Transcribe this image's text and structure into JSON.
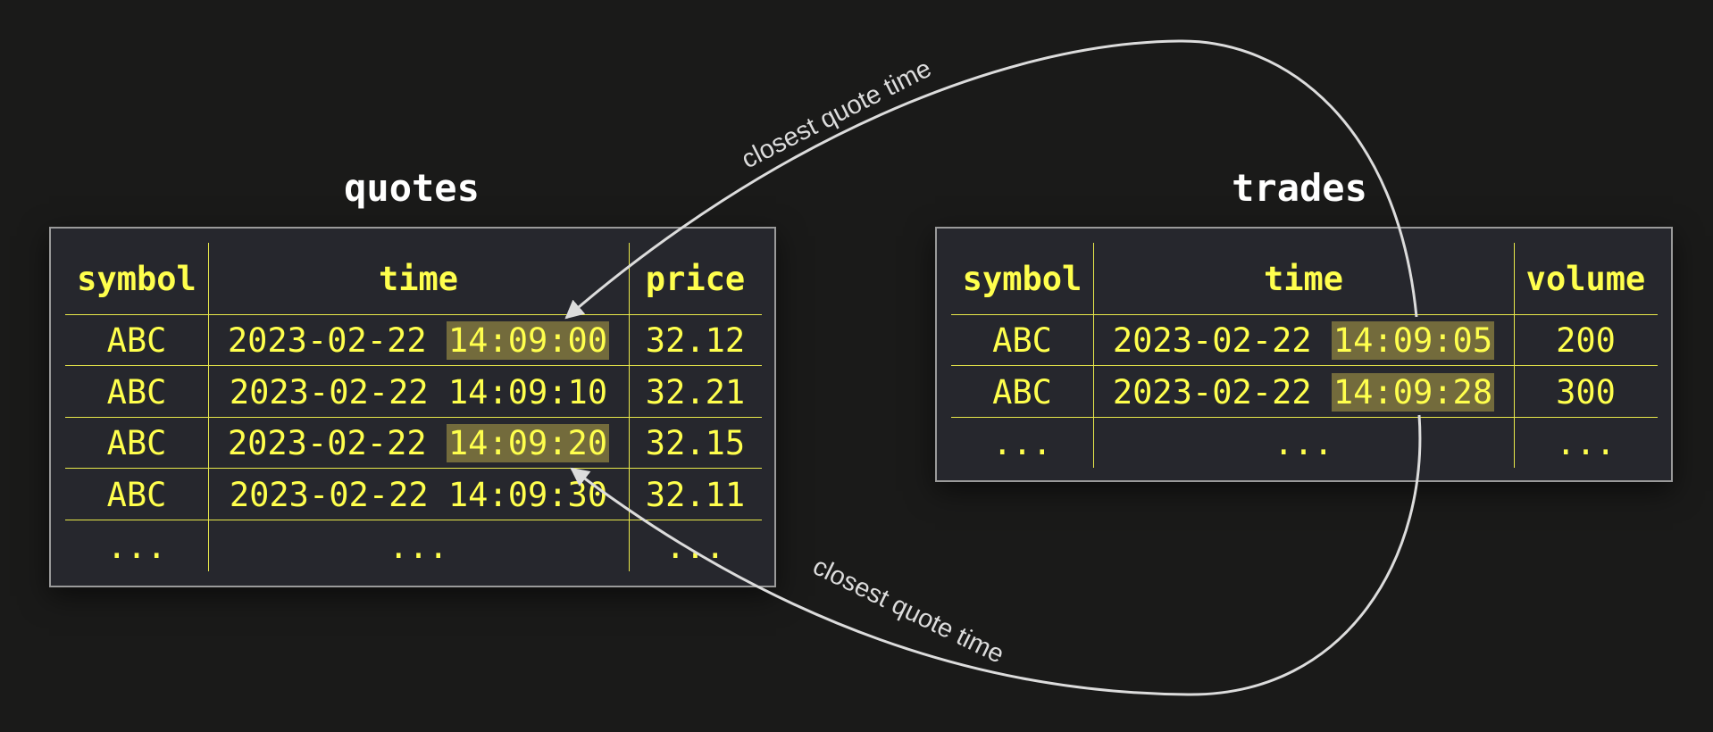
{
  "colors": {
    "background": "#1a1a19",
    "table_bg": "#26272d",
    "text": "#ffff4d",
    "highlight": "#736b3c",
    "arrow": "#dcdcdc"
  },
  "quotes": {
    "title": "quotes",
    "headers": [
      "symbol",
      "time",
      "price"
    ],
    "rows": [
      {
        "symbol": "ABC",
        "date": "2023-02-22",
        "time": "14:09:00",
        "price": "32.12",
        "highlight": true
      },
      {
        "symbol": "ABC",
        "date": "2023-02-22",
        "time": "14:09:10",
        "price": "32.21",
        "highlight": false
      },
      {
        "symbol": "ABC",
        "date": "2023-02-22",
        "time": "14:09:20",
        "price": "32.15",
        "highlight": true
      },
      {
        "symbol": "ABC",
        "date": "2023-02-22",
        "time": "14:09:30",
        "price": "32.11",
        "highlight": false
      }
    ],
    "ellipsis": [
      "...",
      "...",
      "..."
    ]
  },
  "trades": {
    "title": "trades",
    "headers": [
      "symbol",
      "time",
      "volume"
    ],
    "rows": [
      {
        "symbol": "ABC",
        "date": "2023-02-22",
        "time": "14:09:05",
        "volume": "200",
        "highlight": true
      },
      {
        "symbol": "ABC",
        "date": "2023-02-22",
        "time": "14:09:28",
        "volume": "300",
        "highlight": true
      }
    ],
    "ellipsis": [
      "...",
      "...",
      "..."
    ]
  },
  "arrows": [
    {
      "label": "closest quote time",
      "from": "trades.rows.0.time",
      "to": "quotes.rows.0.time"
    },
    {
      "label": "closest quote time",
      "from": "trades.rows.1.time",
      "to": "quotes.rows.2.time"
    }
  ]
}
